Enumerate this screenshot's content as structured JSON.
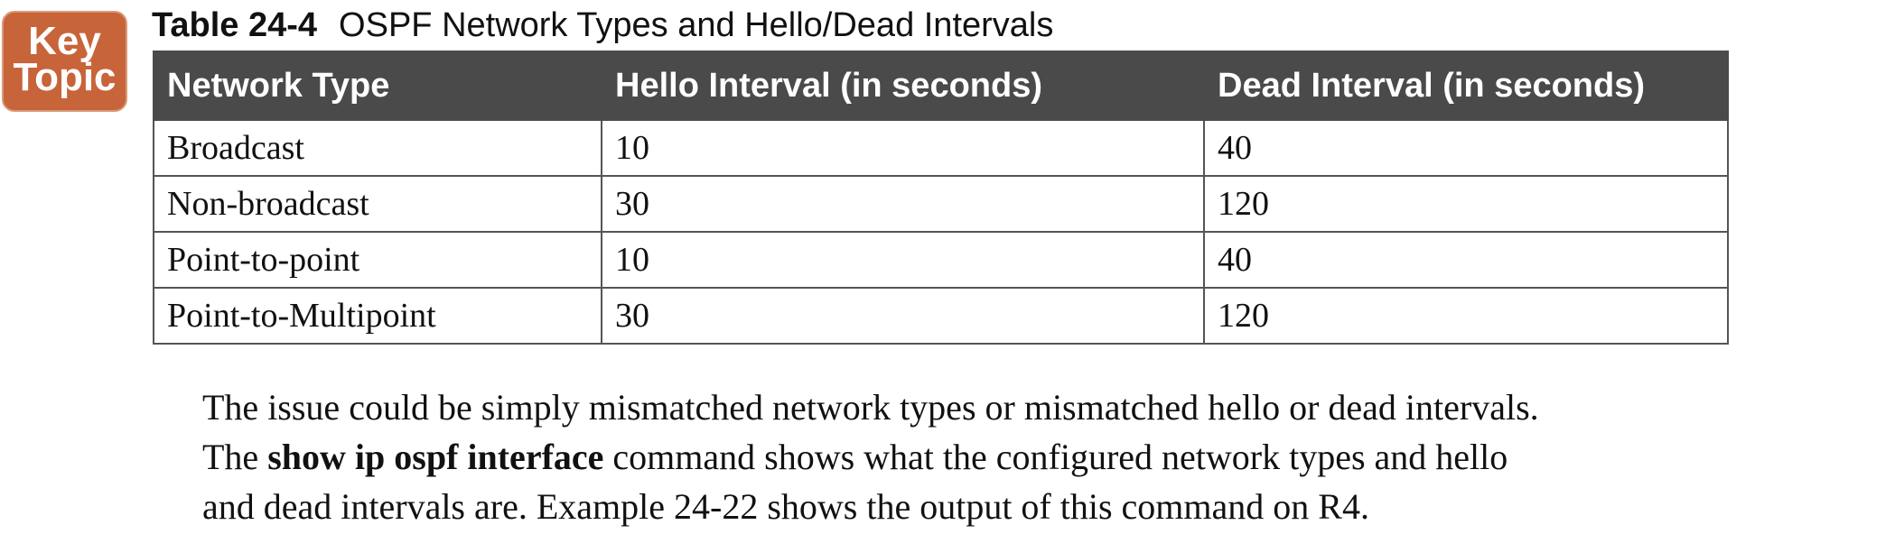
{
  "key_topic": {
    "line1": "Key",
    "line2": "Topic"
  },
  "table": {
    "number": "Table 24-4",
    "title": "OSPF Network Types and Hello/Dead Intervals",
    "headers": [
      "Network Type",
      "Hello Interval (in seconds)",
      "Dead Interval (in seconds)"
    ],
    "rows": [
      [
        "Broadcast",
        "10",
        "40"
      ],
      [
        "Non-broadcast",
        "30",
        "120"
      ],
      [
        "Point-to-point",
        "10",
        "40"
      ],
      [
        "Point-to-Multipoint",
        "30",
        "120"
      ]
    ]
  },
  "paragraph": {
    "line1": "The issue could be simply mismatched network types or mismatched hello or dead intervals.",
    "line2_before": "The ",
    "line2_command": "show ip ospf interface",
    "line2_after": " command shows what the configured network types and hello",
    "line3": "and dead intervals are. Example 24-22 shows the output of this command on R4."
  }
}
